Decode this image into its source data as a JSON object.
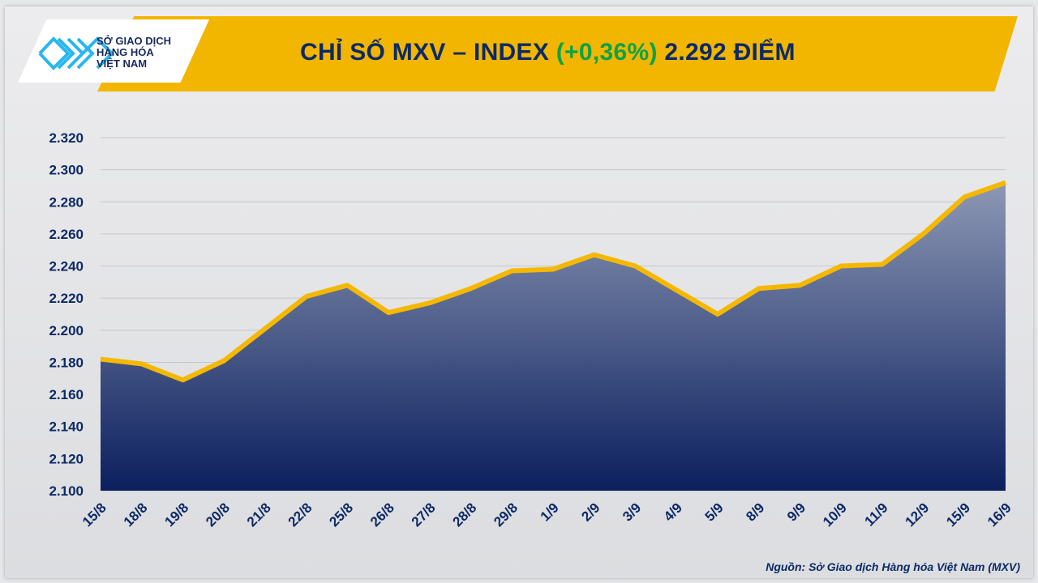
{
  "header": {
    "logo_text": [
      "SỞ GIAO DỊCH",
      "HÀNG HÓA",
      "VIỆT NAM"
    ],
    "title_prefix": "CHỈ SỐ MXV – INDEX ",
    "title_change": "(+0,36%)",
    "title_suffix": " 2.292 ĐIỂM"
  },
  "source": "Nguồn: Sở Giao dịch Hàng hóa Việt Nam (MXV)",
  "colors": {
    "line": "#f5b800",
    "fill_top": "#8590ad",
    "fill_bottom": "#0d2260",
    "change_positive": "#0aa34a",
    "text": "#0d2a66"
  },
  "chart_data": {
    "type": "area",
    "title": "CHỈ SỐ MXV – INDEX (+0,36%) 2.292 ĐIỂM",
    "categories": [
      "15/8",
      "18/8",
      "19/8",
      "20/8",
      "21/8",
      "22/8",
      "25/8",
      "26/8",
      "27/8",
      "28/8",
      "29/8",
      "1/9",
      "2/9",
      "3/9",
      "4/9",
      "5/9",
      "8/9",
      "9/9",
      "10/9",
      "11/9",
      "12/9",
      "15/9",
      "16/9"
    ],
    "values": [
      2182,
      2179,
      2169,
      2181,
      2201,
      2221,
      2228,
      2211,
      2217,
      2226,
      2237,
      2238,
      2247,
      2240,
      2225,
      2210,
      2226,
      2228,
      2240,
      2241,
      2260,
      2283,
      2292
    ],
    "ylim": [
      2100,
      2320
    ],
    "yticks": [
      2100,
      2120,
      2140,
      2160,
      2180,
      2200,
      2220,
      2240,
      2260,
      2280,
      2300,
      2320
    ],
    "ytick_labels": [
      "2.100",
      "2.120",
      "2.140",
      "2.160",
      "2.180",
      "2.200",
      "2.220",
      "2.240",
      "2.260",
      "2.280",
      "2.300",
      "2.320"
    ],
    "grid": true
  }
}
